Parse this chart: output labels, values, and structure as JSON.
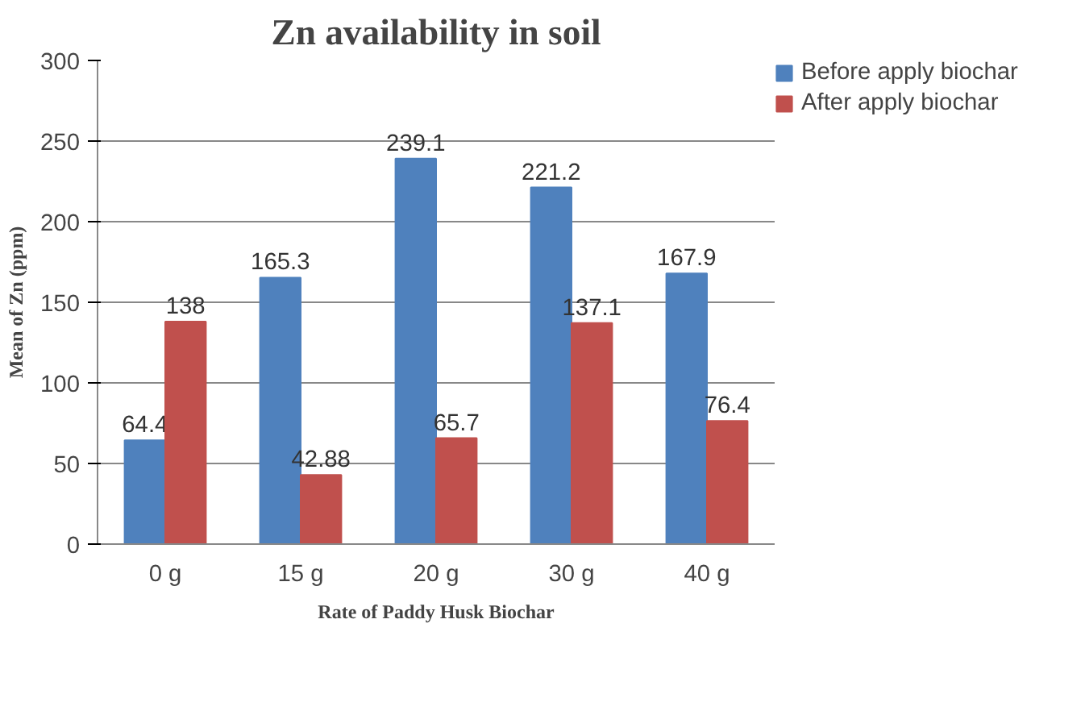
{
  "chart_data": {
    "type": "bar",
    "title": "Zn availability in soil",
    "xlabel": "Rate of Paddy Husk Biochar",
    "ylabel": "Mean of Zn (ppm)",
    "categories": [
      "0 g",
      "15 g",
      "20 g",
      "30 g",
      "40 g"
    ],
    "series": [
      {
        "name": "Before apply biochar",
        "color": "#4f81bd",
        "values": [
          64.4,
          165.3,
          239.1,
          221.2,
          167.9
        ]
      },
      {
        "name": "After apply biochar",
        "color": "#c0504d",
        "values": [
          138,
          42.88,
          65.7,
          137.1,
          76.4
        ]
      }
    ],
    "ylim": [
      0,
      300
    ],
    "yticks": [
      0,
      50,
      100,
      150,
      200,
      250,
      300
    ],
    "grid": "y",
    "legend": "right",
    "data_labels": true
  }
}
